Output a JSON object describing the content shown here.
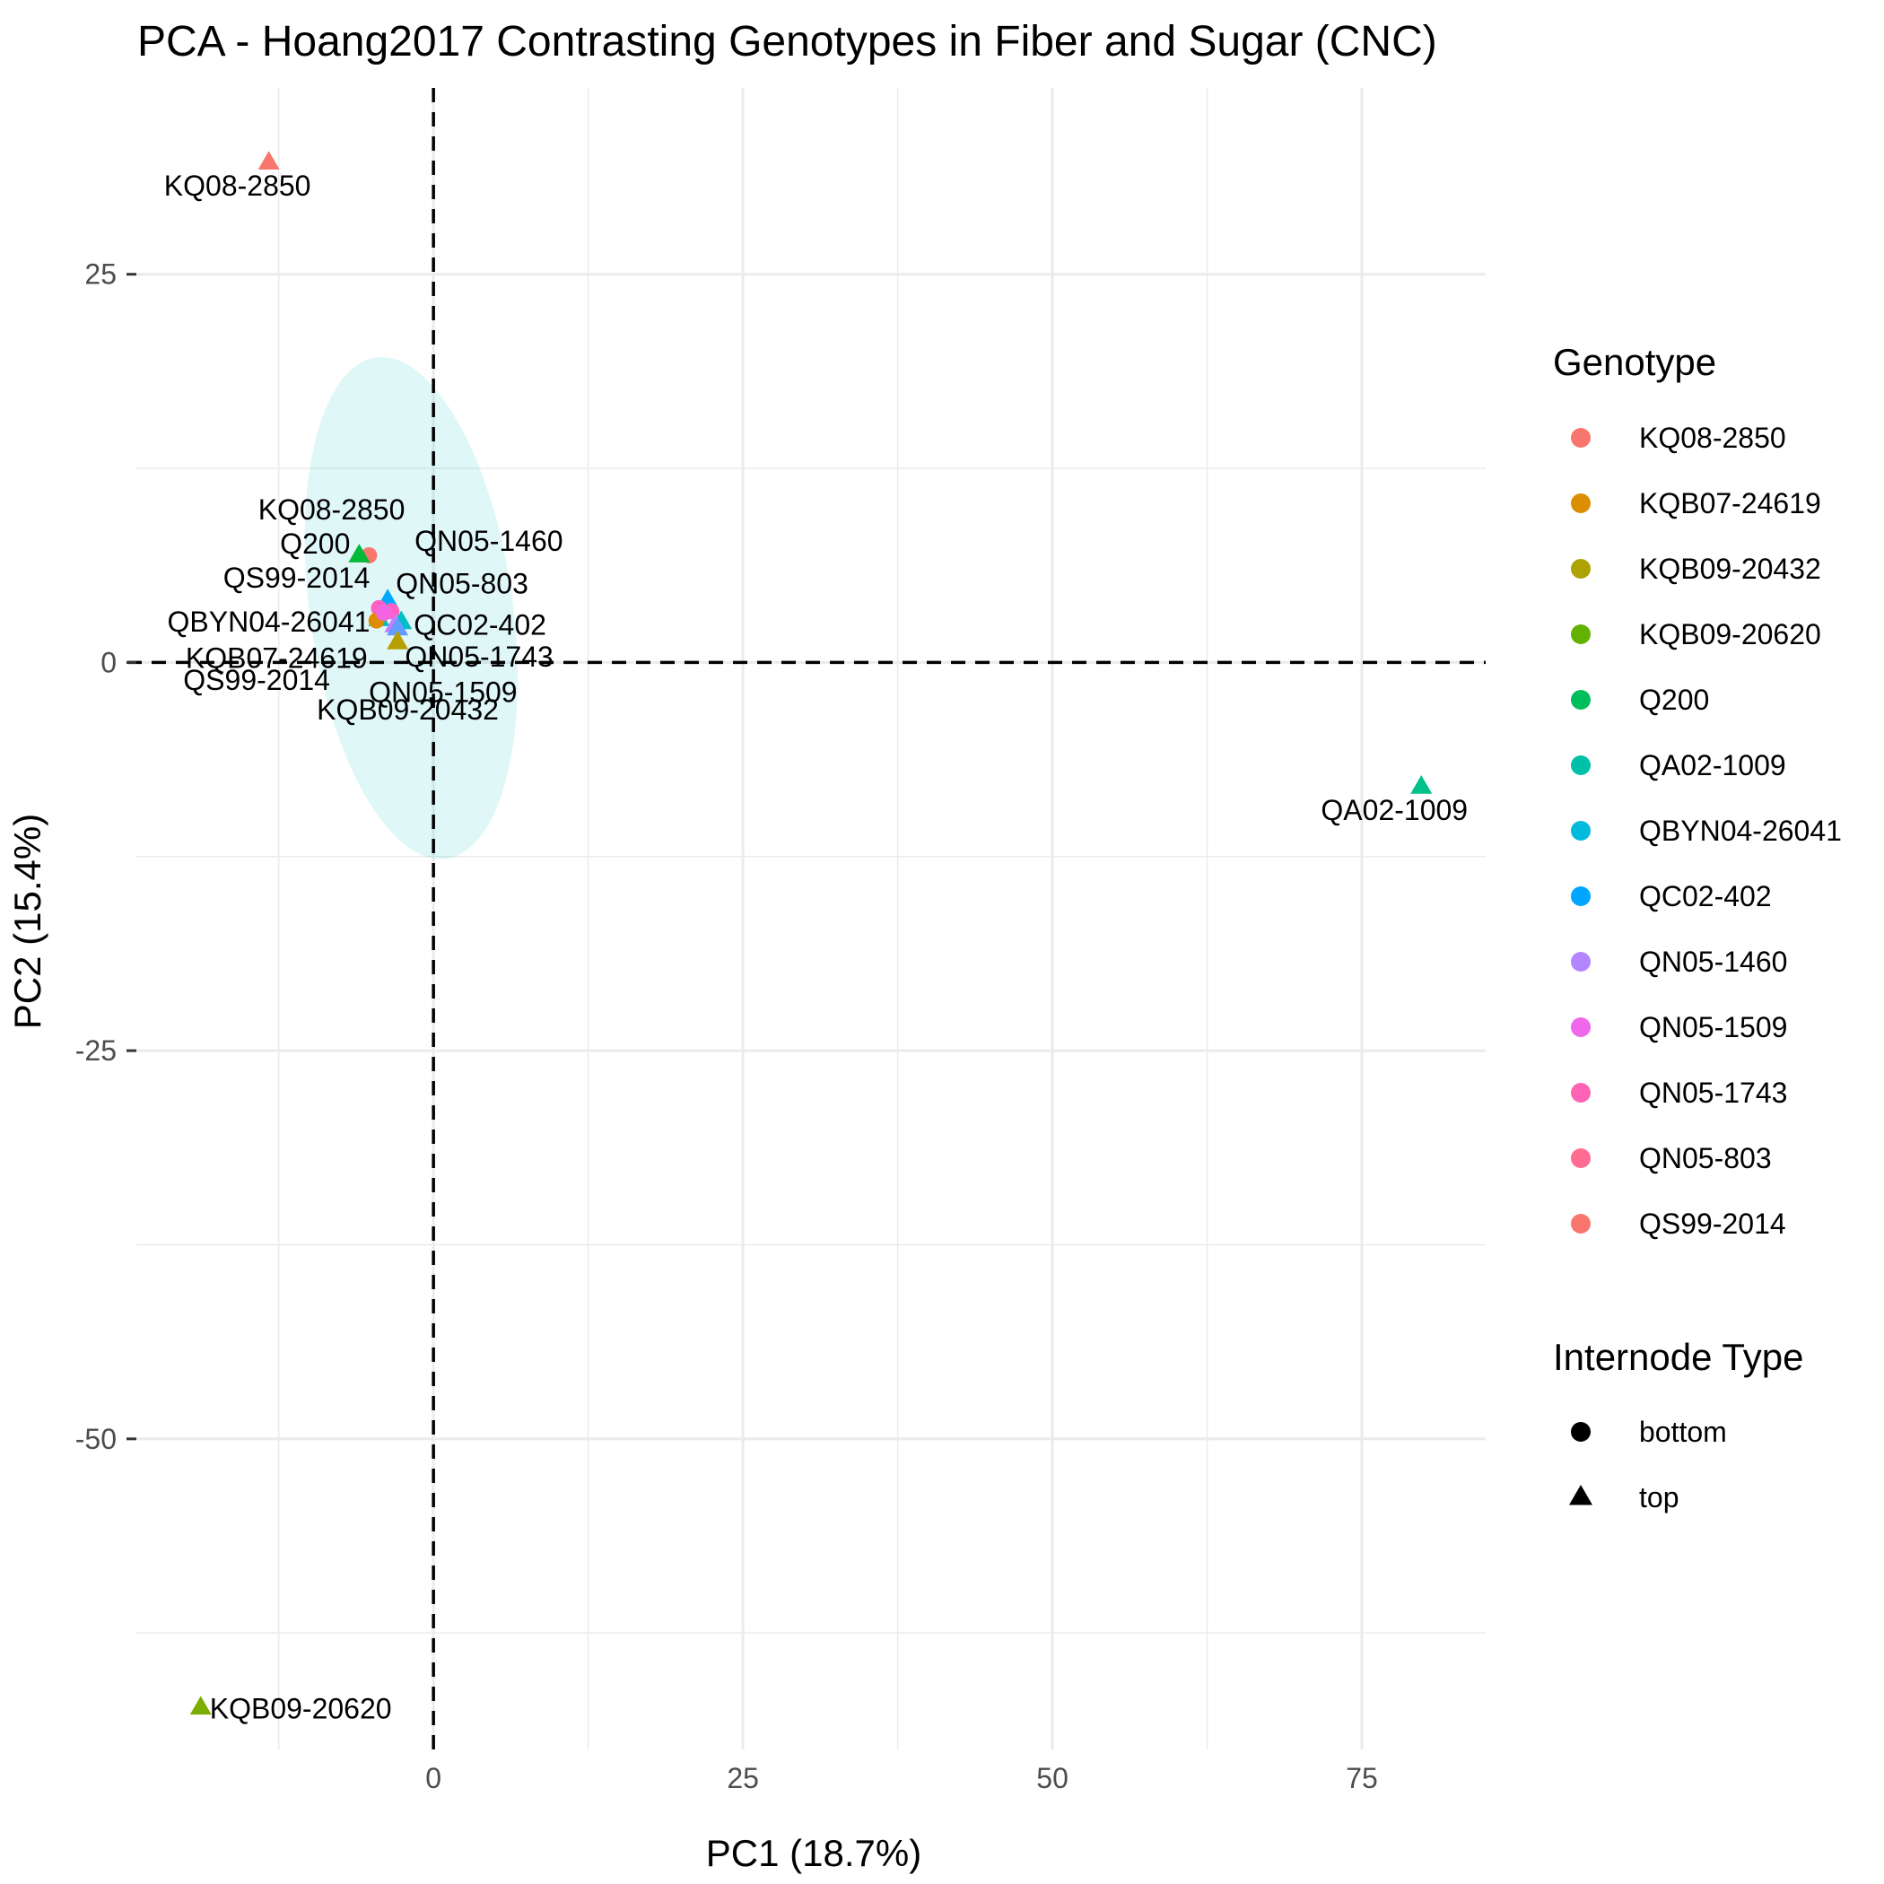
{
  "chart_data": {
    "type": "scatter",
    "title": "PCA - Hoang2017 Contrasting Genotypes in Fiber and Sugar (CNC)",
    "xlabel": "PC1 (18.7%)",
    "ylabel": "PC2 (15.4%)",
    "xlim": [
      -24,
      85
    ],
    "ylim": [
      -70,
      37
    ],
    "x_ticks": [
      0,
      25,
      50,
      75
    ],
    "x_tick_labels": [
      "0",
      "25",
      "50",
      "75"
    ],
    "y_ticks": [
      25,
      0,
      -25,
      -50
    ],
    "y_tick_labels": [
      "25",
      "0",
      "-25",
      "-50"
    ],
    "grid": true,
    "reference_lines": {
      "x": 0,
      "y": 0
    },
    "ellipse": {
      "center": [
        -1.8,
        3.5
      ],
      "rx": 8.2,
      "ry": 16.3,
      "rotation_deg": -8,
      "color": "#00BFC4",
      "opacity": 0.12
    },
    "legend_position": "right",
    "legend": {
      "genotype_title": "Genotype",
      "genotypes": [
        {
          "name": "KQ08-2850",
          "color": "#F8766D"
        },
        {
          "name": "KQB07-24619",
          "color": "#DB8E00"
        },
        {
          "name": "KQB09-20432",
          "color": "#AEA200"
        },
        {
          "name": "KQB09-20620",
          "color": "#64B200"
        },
        {
          "name": "Q200",
          "color": "#00BD5C"
        },
        {
          "name": "QA02-1009",
          "color": "#00C1A7"
        },
        {
          "name": "QBYN04-26041",
          "color": "#00BADE"
        },
        {
          "name": "QC02-402",
          "color": "#00A6FF"
        },
        {
          "name": "QN05-1460",
          "color": "#B385FF"
        },
        {
          "name": "QN05-1509",
          "color": "#EF67EB"
        },
        {
          "name": "QN05-1743",
          "color": "#FF63B6"
        },
        {
          "name": "QN05-803",
          "color": "#FF6C91"
        },
        {
          "name": "QS99-2014",
          "color": "#F8766D"
        }
      ],
      "shape_title": "Internode Type",
      "shapes": [
        {
          "name": "bottom",
          "shape": "circle"
        },
        {
          "name": "top",
          "shape": "triangle"
        }
      ]
    },
    "points": [
      {
        "label": "KQ08-2850",
        "x": -13.3,
        "y": 32.2,
        "shape": "triangle",
        "color": "#F8766D"
      },
      {
        "label": "QA02-1009",
        "x": 79.8,
        "y": -8.0,
        "shape": "triangle",
        "color": "#00C08B"
      },
      {
        "label": "KQB09-20620",
        "x": -18.8,
        "y": -67.3,
        "shape": "triangle",
        "color": "#7CAE00"
      },
      {
        "label": "KQ08-2850",
        "x": -5.2,
        "y": 6.9,
        "shape": "circle",
        "color": "#F8766D"
      },
      {
        "label": "Q200",
        "x": -6.0,
        "y": 6.9,
        "shape": "triangle",
        "color": "#00BA38"
      },
      {
        "label": "QN05-1460",
        "x": -3.7,
        "y": 4.0,
        "shape": "triangle",
        "color": "#00A9FF"
      },
      {
        "label": "QN05-803",
        "x": -3.4,
        "y": 3.3,
        "shape": "circle",
        "color": "#FF61C3"
      },
      {
        "label": "QS99-2014",
        "x": -4.4,
        "y": 3.5,
        "shape": "circle",
        "color": "#FF61C3"
      },
      {
        "label": "QBYN04-26041",
        "x": -4.4,
        "y": 2.8,
        "shape": "triangle",
        "color": "#00BFC4"
      },
      {
        "label": "QC02-402",
        "x": -2.6,
        "y": 2.6,
        "shape": "triangle",
        "color": "#00BFC4"
      },
      {
        "label": "KQB07-24619",
        "x": -4.6,
        "y": 2.7,
        "shape": "circle",
        "color": "#DE8C00"
      },
      {
        "label": "QN05-1743",
        "x": -3.1,
        "y": 2.4,
        "shape": "triangle",
        "color": "#C77CFF"
      },
      {
        "label": "QN05-1509",
        "x": -2.9,
        "y": 2.2,
        "shape": "triangle",
        "color": "#619CFF"
      },
      {
        "label": "KQB09-20432",
        "x": -2.9,
        "y": 1.3,
        "shape": "triangle",
        "color": "#B79F00"
      },
      {
        "label": "QS99-2014",
        "x": -4.0,
        "y": 3.2,
        "shape": "circle",
        "color": "#F564E3"
      }
    ]
  }
}
